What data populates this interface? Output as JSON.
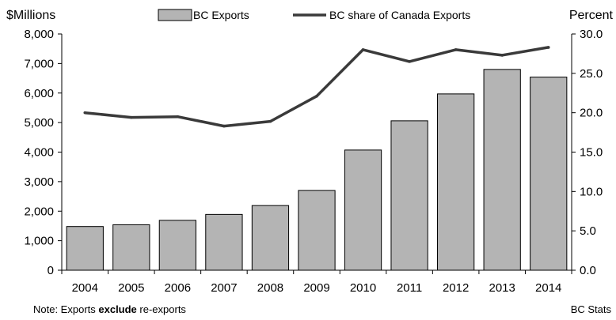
{
  "chart_data": {
    "type": "bar",
    "categories": [
      "2004",
      "2005",
      "2006",
      "2007",
      "2008",
      "2009",
      "2010",
      "2011",
      "2012",
      "2013",
      "2014"
    ],
    "series": [
      {
        "name": "BC Exports",
        "type": "bar",
        "axis": "left",
        "values": [
          1480,
          1540,
          1690,
          1890,
          2190,
          2700,
          4070,
          5060,
          5970,
          6800,
          6540
        ]
      },
      {
        "name": "BC share of Canada Exports",
        "type": "line",
        "axis": "right",
        "values": [
          20.0,
          19.4,
          19.5,
          18.3,
          18.9,
          22.1,
          28.0,
          26.5,
          28.0,
          27.3,
          28.3
        ]
      }
    ],
    "ylabel_left": "$Millions",
    "ylabel_right": "Percent",
    "ylim_left": [
      0,
      8000
    ],
    "ylim_right": [
      0,
      30
    ],
    "yticks_left": [
      "0",
      "1,000",
      "2,000",
      "3,000",
      "4,000",
      "5,000",
      "6,000",
      "7,000",
      "8,000"
    ],
    "yticks_right": [
      "0.0",
      "5.0",
      "10.0",
      "15.0",
      "20.0",
      "25.0",
      "30.0"
    ],
    "grid": false,
    "legend_position": "top",
    "colors": {
      "bar_fill": "#b4b4b4",
      "bar_stroke": "#000000",
      "line": "#3a3a3a"
    }
  },
  "footer": {
    "note_prefix": "Note: Exports ",
    "note_bold": "exclude",
    "note_suffix": " re-exports",
    "source": "BC Stats"
  }
}
